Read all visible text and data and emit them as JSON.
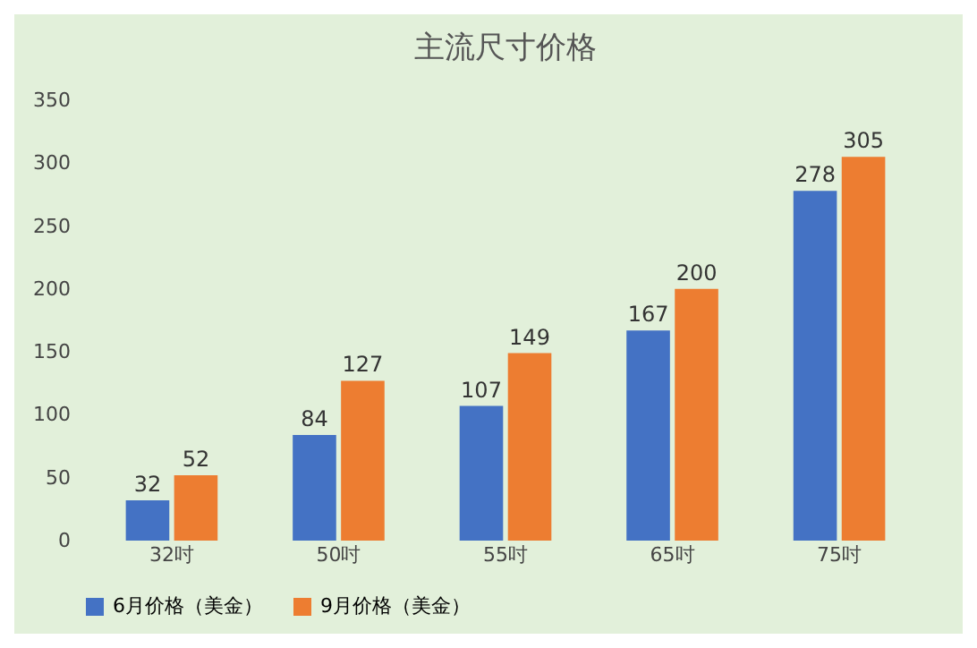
{
  "chart_data": {
    "type": "bar",
    "title": "主流尺寸价格",
    "categories": [
      "32吋",
      "50吋",
      "55吋",
      "65吋",
      "75吋"
    ],
    "series": [
      {
        "name": "6月价格（美金）",
        "color": "#4472c4",
        "values": [
          32,
          84,
          107,
          167,
          278
        ]
      },
      {
        "name": "9月价格（美金）",
        "color": "#ed7d31",
        "values": [
          52,
          127,
          149,
          200,
          305
        ]
      }
    ],
    "ylim": [
      0,
      350
    ],
    "yticks": [
      0,
      50,
      100,
      150,
      200,
      250,
      300,
      350
    ],
    "grid": false,
    "legend": "bottom",
    "data_labels": true
  }
}
